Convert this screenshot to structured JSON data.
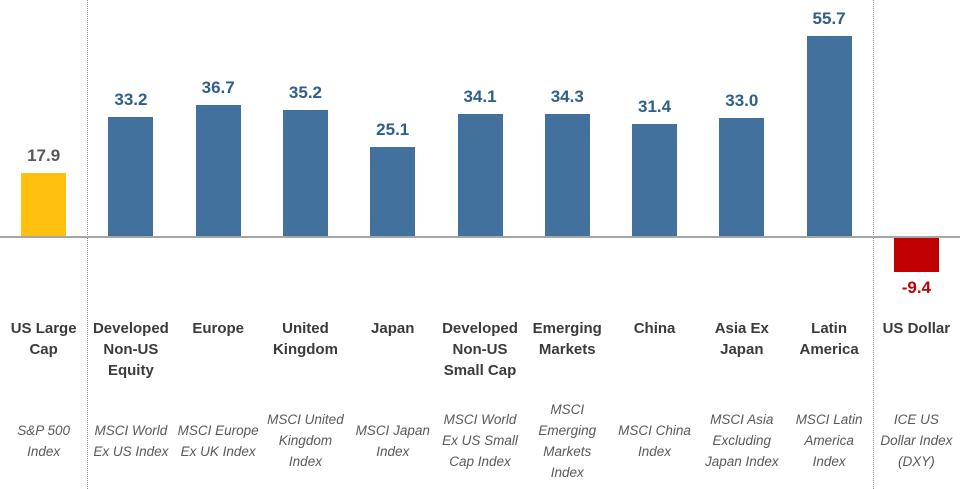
{
  "chart_data": {
    "type": "bar",
    "title": "",
    "xlabel": "",
    "ylabel": "",
    "ylim": [
      -15,
      60
    ],
    "grid": false,
    "legend": false,
    "categories": [
      "US Large Cap",
      "Developed Non-US Equity",
      "Europe",
      "United Kingdom",
      "Japan",
      "Developed Non-US Small Cap",
      "Emerging Markets",
      "China",
      "Asia Ex Japan",
      "Latin America",
      "US Dollar"
    ],
    "index_names": [
      "S&P 500 Index",
      "MSCI World Ex US Index",
      "MSCI Europe Ex UK Index",
      "MSCI United Kingdom Index",
      "MSCI Japan Index",
      "MSCI World Ex US Small Cap Index",
      "MSCI Emerging Markets Index",
      "MSCI China Index",
      "MSCI Asia Excluding Japan Index",
      "MSCI Latin America Index",
      "ICE US Dollar Index (DXY)"
    ],
    "values": [
      17.9,
      33.2,
      36.7,
      35.2,
      25.1,
      34.1,
      34.3,
      31.4,
      33.0,
      55.7,
      -9.4
    ],
    "value_label_texts": [
      "17.9",
      "33.2",
      "36.7",
      "35.2",
      "25.1",
      "34.1",
      "34.3",
      "31.4",
      "33.0",
      "55.7",
      "-9.4"
    ],
    "bar_colors": [
      "#FFC010",
      "#41719C",
      "#41719C",
      "#41719C",
      "#41719C",
      "#41719C",
      "#41719C",
      "#41719C",
      "#41719C",
      "#41719C",
      "#C00000"
    ],
    "value_label_colors": [
      "#595959",
      "#2E5E8E",
      "#2E5E8E",
      "#2E5E8E",
      "#2E5E8E",
      "#2E5E8E",
      "#2E5E8E",
      "#2E5E8E",
      "#2E5E8E",
      "#2E5E8E",
      "#C00000"
    ],
    "separators_after_column": [
      0,
      9
    ],
    "axis_color": "#A6A6A6",
    "separator_color": "#8C8C8C"
  }
}
